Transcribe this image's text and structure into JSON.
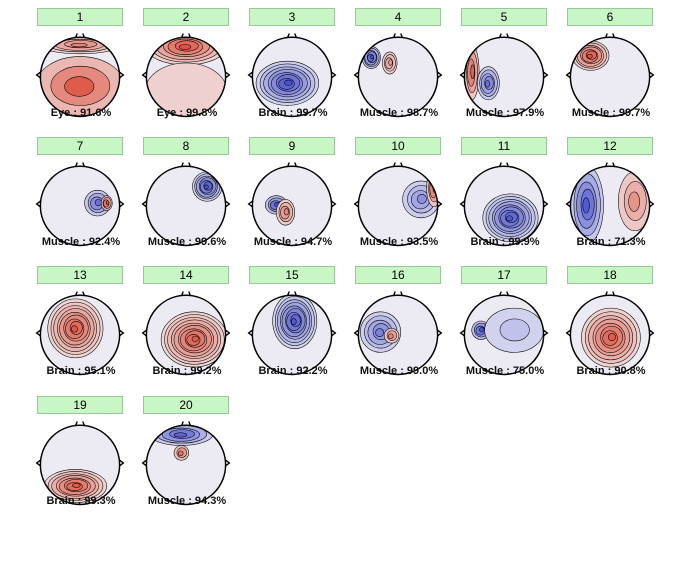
{
  "components": [
    {
      "number": "1",
      "label": "Eye : 91.6%"
    },
    {
      "number": "2",
      "label": "Eye : 99.8%"
    },
    {
      "number": "3",
      "label": "Brain : 99.7%"
    },
    {
      "number": "4",
      "label": "Muscle : 98.7%"
    },
    {
      "number": "5",
      "label": "Muscle : 97.9%"
    },
    {
      "number": "6",
      "label": "Muscle : 99.7%"
    },
    {
      "number": "7",
      "label": "Muscle : 92.4%"
    },
    {
      "number": "8",
      "label": "Muscle : 99.6%"
    },
    {
      "number": "9",
      "label": "Muscle : 94.7%"
    },
    {
      "number": "10",
      "label": "Muscle : 93.5%"
    },
    {
      "number": "11",
      "label": "Brain : 99.9%"
    },
    {
      "number": "12",
      "label": "Brain : 71.3%"
    },
    {
      "number": "13",
      "label": "Brain : 95.1%"
    },
    {
      "number": "14",
      "label": "Brain : 99.2%"
    },
    {
      "number": "15",
      "label": "Brain : 92.2%"
    },
    {
      "number": "16",
      "label": "Muscle : 99.0%"
    },
    {
      "number": "17",
      "label": "Muscle : 75.0%"
    },
    {
      "number": "18",
      "label": "Brain : 90.8%"
    },
    {
      "number": "19",
      "label": "Brain : 99.3%"
    },
    {
      "number": "20",
      "label": "Muscle : 94.3%"
    }
  ],
  "colors": {
    "button_bg": "#c8f7c5",
    "positive": "#d94a2f",
    "negative": "#3f45c4",
    "neutral": "#eceaf3"
  }
}
